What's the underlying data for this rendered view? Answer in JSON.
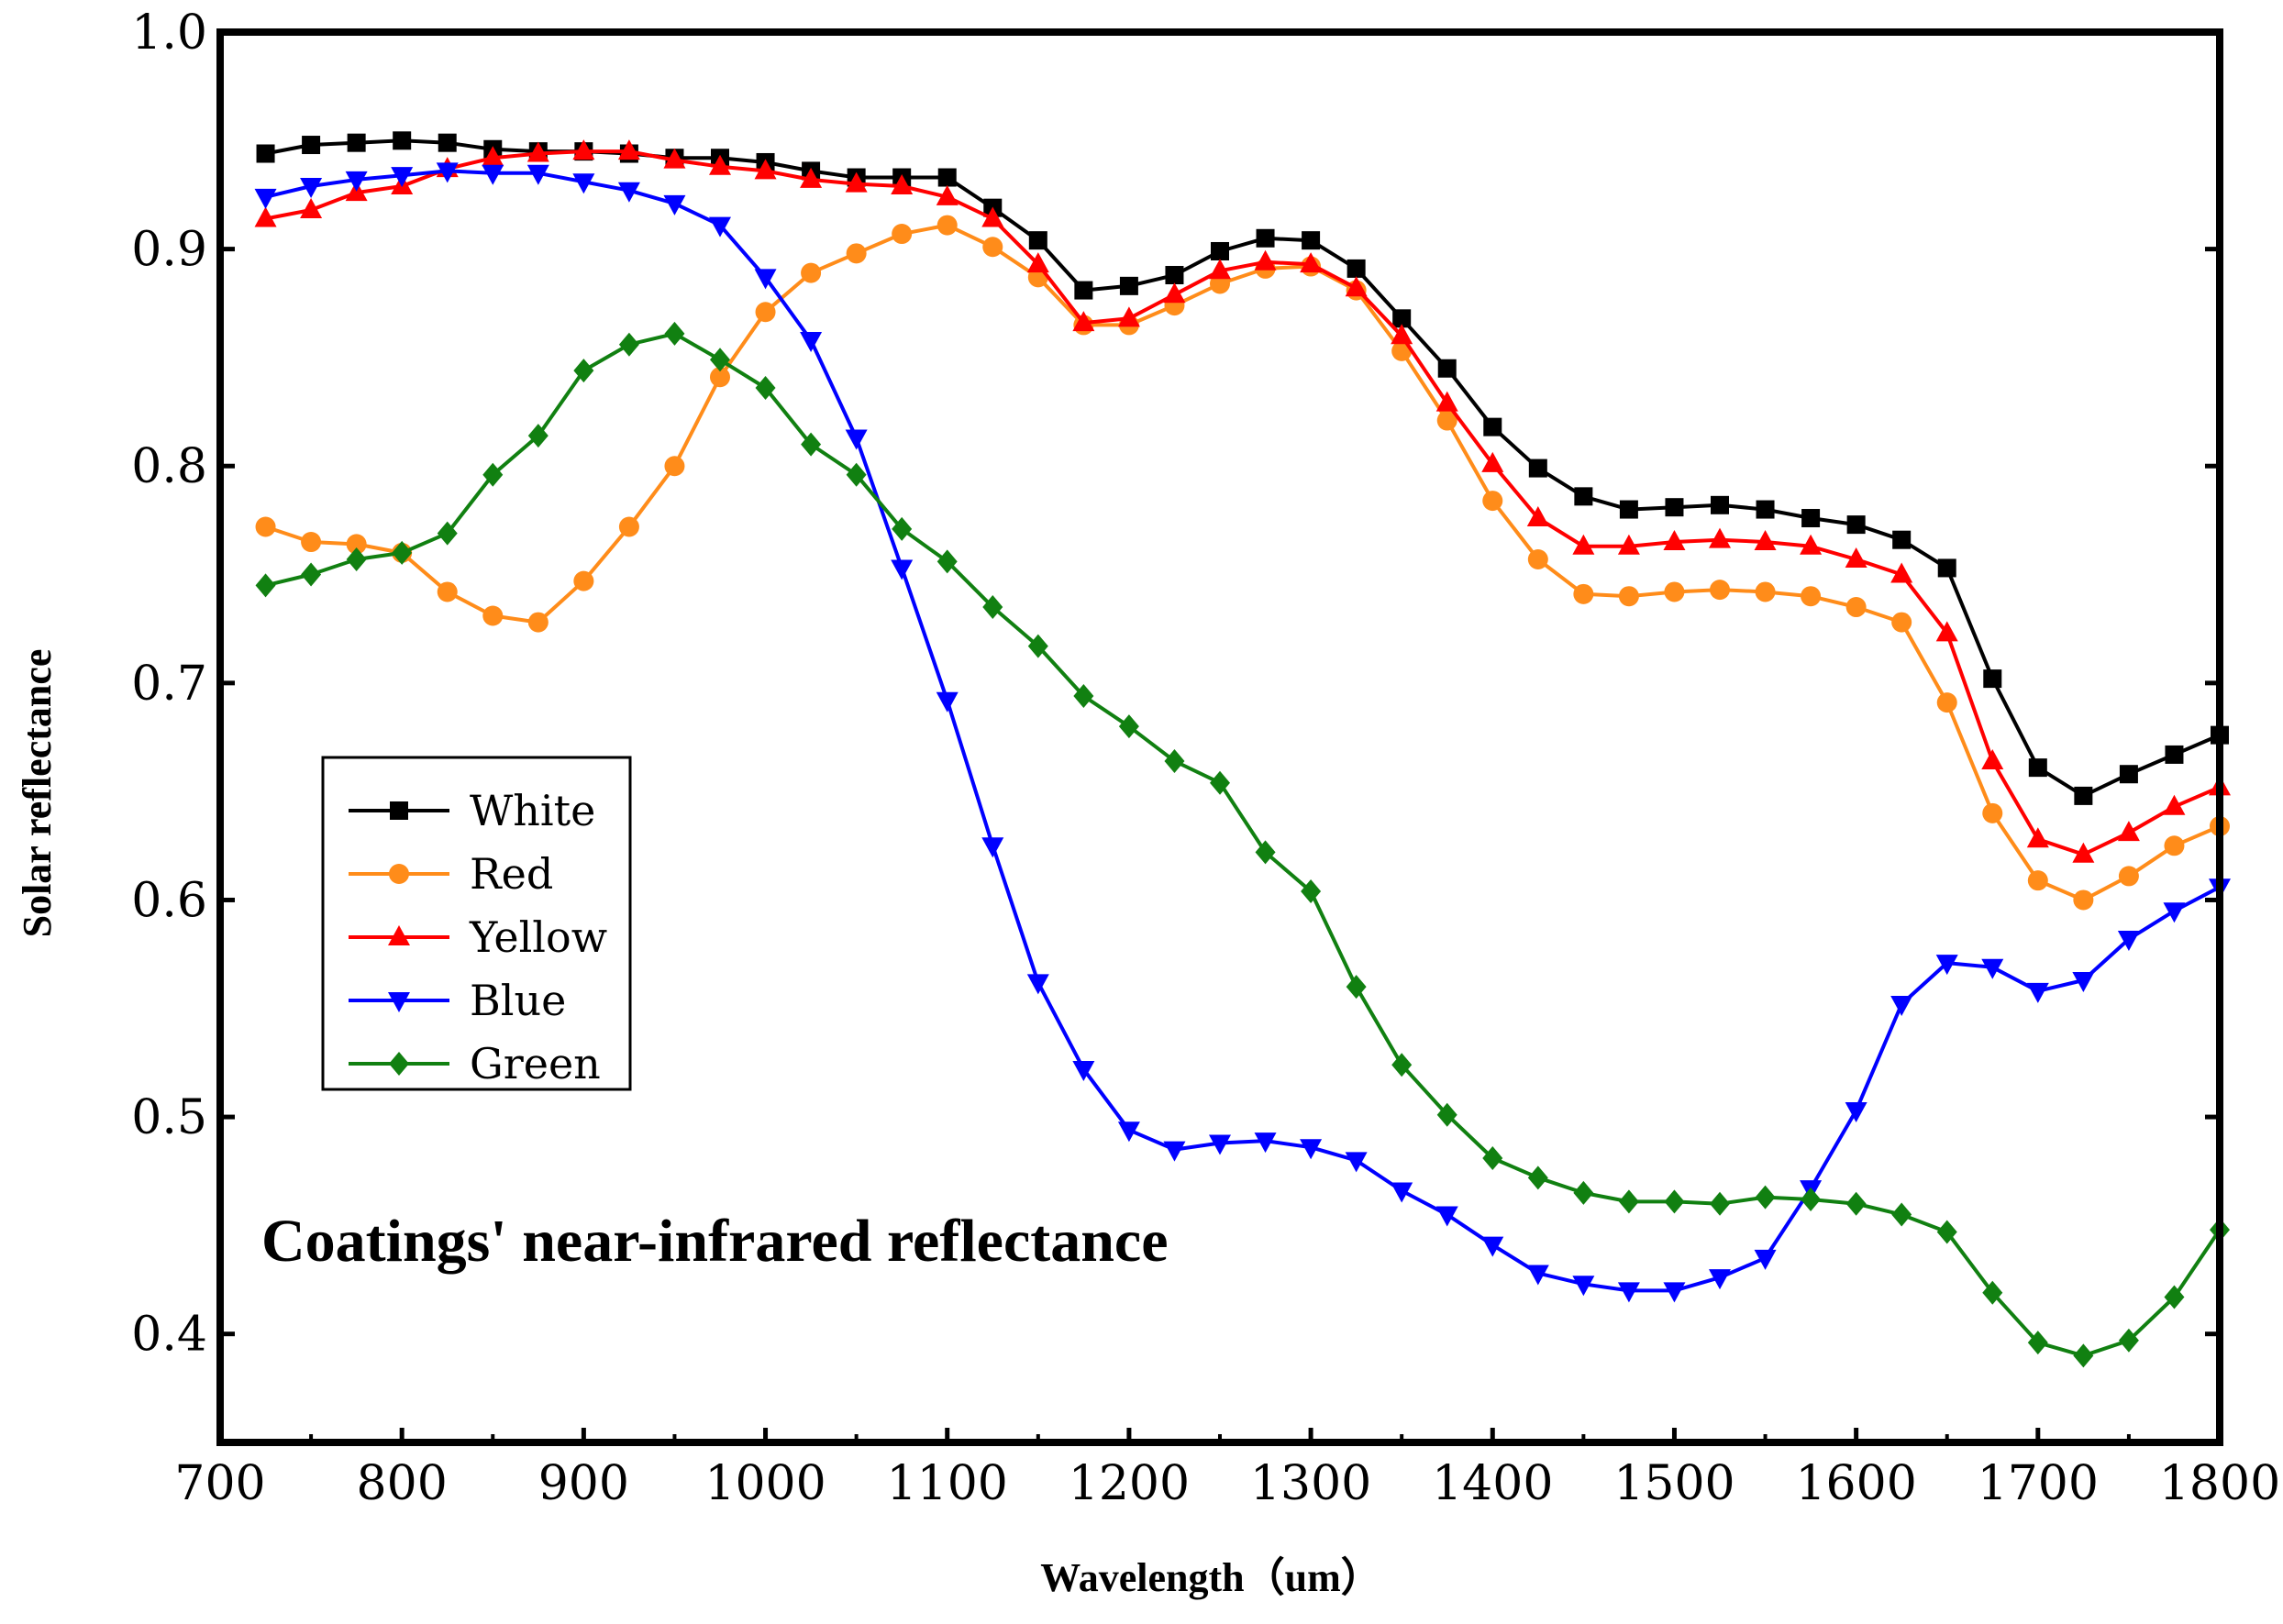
{
  "chart_data": {
    "type": "line",
    "title": "",
    "annotation": "Coatings'  near-infrared reflectance",
    "xlabel": "Wavelength（um）",
    "ylabel": "Solar reflectance",
    "xlim": [
      700,
      1800
    ],
    "ylim": [
      0.35,
      1.0
    ],
    "xticks": [
      700,
      800,
      900,
      1000,
      1100,
      1200,
      1300,
      1400,
      1500,
      1600,
      1700,
      1800
    ],
    "yticks": [
      0.4,
      0.5,
      0.6,
      0.7,
      0.8,
      0.9,
      1.0
    ],
    "xtick_labels": [
      "700",
      "800",
      "900",
      "1000",
      "1100",
      "1200",
      "1300",
      "1400",
      "1500",
      "1600",
      "1700",
      "1800"
    ],
    "ytick_labels": [
      "0.4",
      "0.5",
      "0.6",
      "0.7",
      "0.8",
      "0.9",
      "1.0"
    ],
    "grid": false,
    "legend_position": "middle-left",
    "x": [
      725,
      750,
      775,
      800,
      825,
      850,
      875,
      900,
      925,
      950,
      975,
      1000,
      1025,
      1050,
      1075,
      1100,
      1125,
      1150,
      1175,
      1200,
      1225,
      1250,
      1275,
      1300,
      1325,
      1350,
      1375,
      1400,
      1425,
      1450,
      1475,
      1500,
      1525,
      1550,
      1575,
      1600,
      1625,
      1650,
      1675,
      1700,
      1725,
      1750,
      1775,
      1800
    ],
    "series": [
      {
        "name": "White",
        "color": "#000000",
        "marker": "square",
        "values": [
          0.944,
          0.948,
          0.949,
          0.95,
          0.949,
          0.946,
          0.945,
          0.945,
          0.944,
          0.942,
          0.942,
          0.94,
          0.936,
          0.933,
          0.933,
          0.933,
          0.919,
          0.904,
          0.881,
          0.883,
          0.888,
          0.899,
          0.905,
          0.904,
          0.891,
          0.868,
          0.845,
          0.818,
          0.799,
          0.786,
          0.78,
          0.781,
          0.782,
          0.78,
          0.776,
          0.773,
          0.766,
          0.753,
          0.702,
          0.661,
          0.648,
          0.658,
          0.667,
          0.676
        ]
      },
      {
        "name": "Red",
        "color": "#ff8c1a",
        "marker": "circle",
        "values": [
          0.772,
          0.765,
          0.764,
          0.76,
          0.742,
          0.731,
          0.728,
          0.747,
          0.772,
          0.8,
          0.841,
          0.871,
          0.889,
          0.898,
          0.907,
          0.911,
          0.901,
          0.887,
          0.865,
          0.865,
          0.874,
          0.884,
          0.891,
          0.892,
          0.881,
          0.853,
          0.821,
          0.784,
          0.757,
          0.741,
          0.74,
          0.742,
          0.743,
          0.742,
          0.74,
          0.735,
          0.728,
          0.691,
          0.64,
          0.609,
          0.6,
          0.611,
          0.625,
          0.634
        ]
      },
      {
        "name": "Yellow",
        "color": "#ff0000",
        "marker": "triangle-up",
        "values": [
          0.914,
          0.918,
          0.926,
          0.929,
          0.937,
          0.942,
          0.944,
          0.945,
          0.945,
          0.941,
          0.938,
          0.936,
          0.932,
          0.93,
          0.929,
          0.924,
          0.914,
          0.893,
          0.866,
          0.868,
          0.879,
          0.89,
          0.894,
          0.893,
          0.882,
          0.86,
          0.829,
          0.801,
          0.776,
          0.763,
          0.763,
          0.765,
          0.766,
          0.765,
          0.763,
          0.757,
          0.75,
          0.723,
          0.664,
          0.628,
          0.621,
          0.631,
          0.643,
          0.652
        ]
      },
      {
        "name": "Blue",
        "color": "#0000ff",
        "marker": "triangle-down",
        "values": [
          0.924,
          0.929,
          0.932,
          0.934,
          0.936,
          0.935,
          0.935,
          0.931,
          0.927,
          0.921,
          0.911,
          0.887,
          0.858,
          0.813,
          0.753,
          0.692,
          0.625,
          0.562,
          0.522,
          0.494,
          0.485,
          0.488,
          0.489,
          0.486,
          0.48,
          0.466,
          0.455,
          0.441,
          0.428,
          0.423,
          0.42,
          0.42,
          0.426,
          0.435,
          0.467,
          0.503,
          0.552,
          0.571,
          0.569,
          0.558,
          0.563,
          0.582,
          0.595,
          0.606
        ]
      },
      {
        "name": "Green",
        "color": "#118011",
        "marker": "diamond",
        "values": [
          0.745,
          0.75,
          0.757,
          0.76,
          0.769,
          0.796,
          0.814,
          0.844,
          0.856,
          0.861,
          0.849,
          0.836,
          0.81,
          0.796,
          0.771,
          0.756,
          0.735,
          0.717,
          0.694,
          0.68,
          0.664,
          0.654,
          0.622,
          0.604,
          0.56,
          0.524,
          0.501,
          0.481,
          0.472,
          0.465,
          0.461,
          0.461,
          0.46,
          0.463,
          0.462,
          0.46,
          0.455,
          0.447,
          0.419,
          0.396,
          0.39,
          0.397,
          0.417,
          0.448
        ]
      }
    ]
  }
}
